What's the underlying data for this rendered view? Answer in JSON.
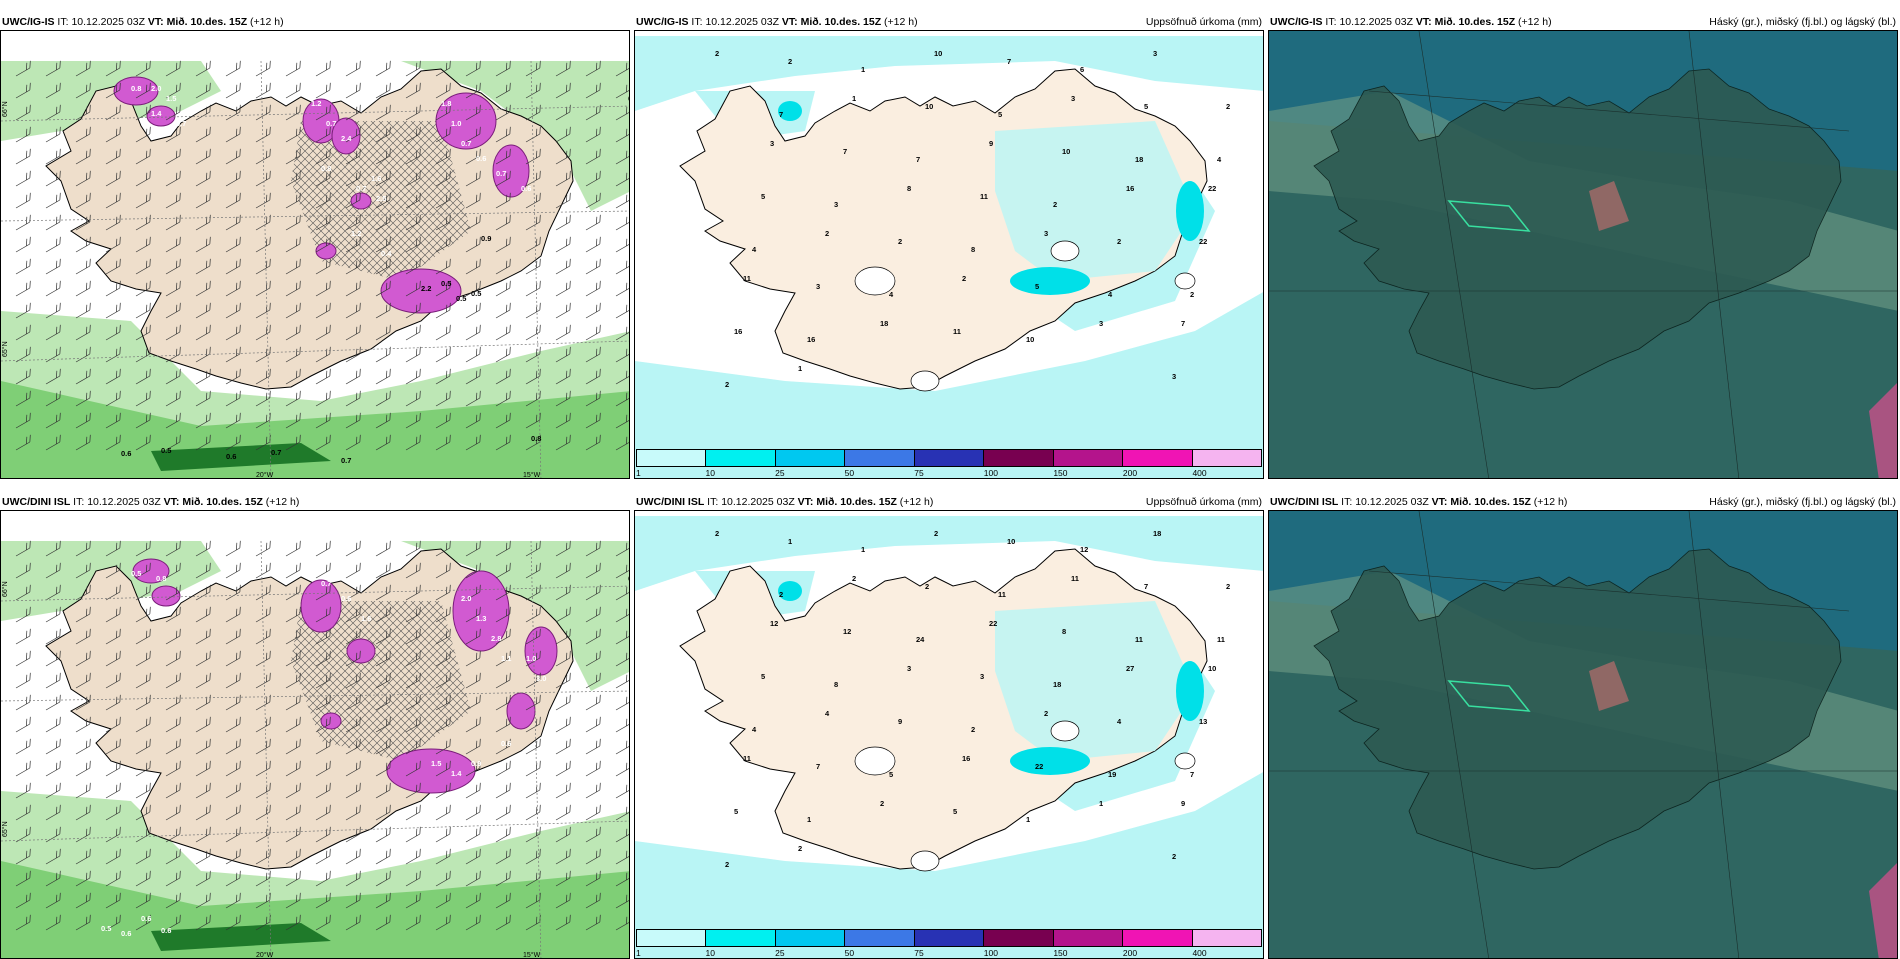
{
  "row1": {
    "p1": {
      "model": "UWC/IG-IS",
      "it_prefix": "IT:",
      "it": "10.12.2025 03Z",
      "vt_prefix": "VT:",
      "vt": "Mið. 10.des. 15Z",
      "lead": "(+12 h)"
    },
    "p2": {
      "model": "UWC/IG-IS",
      "it_prefix": "IT:",
      "it": "10.12.2025 03Z",
      "vt_prefix": "VT:",
      "vt": "Mið. 10.des. 15Z",
      "lead": "(+12 h)",
      "right": "Uppsöfnuð úrkoma (mm)"
    },
    "p3": {
      "model": "UWC/IG-IS",
      "it_prefix": "IT:",
      "it": "10.12.2025 03Z",
      "vt_prefix": "VT:",
      "vt": "Mið. 10.des. 15Z",
      "lead": "(+12 h)",
      "right": "Háský (gr.), miðský (fj.bl.) og lágský (bl.)"
    }
  },
  "row2": {
    "p1": {
      "model": "UWC/DINI ISL",
      "it_prefix": "IT:",
      "it": "10.12.2025 03Z",
      "vt_prefix": "VT:",
      "vt": "Mið. 10.des. 15Z",
      "lead": "(+12 h)"
    },
    "p2": {
      "model": "UWC/DINI ISL",
      "it_prefix": "IT:",
      "it": "10.12.2025 03Z",
      "vt_prefix": "VT:",
      "vt": "Mið. 10.des. 15Z",
      "lead": "(+12 h)",
      "right": "Uppsöfnuð úrkoma (mm)"
    },
    "p3": {
      "model": "UWC/DINI ISL",
      "it_prefix": "IT:",
      "it": "10.12.2025 03Z",
      "vt_prefix": "VT:",
      "vt": "Mið. 10.des. 15Z",
      "lead": "(+12 h)",
      "right": "Háský (gr.), miðský (fj.bl.) og lágský (bl.)"
    }
  },
  "map_labels": {
    "lat66": "66°N",
    "lat65": "65°N",
    "lat64": "64°N",
    "lon25": "25°W",
    "lon20": "20°W",
    "lon15": "15°W"
  },
  "colorbar": {
    "ticks": [
      "1",
      "10",
      "25",
      "50",
      "75",
      "100",
      "150",
      "200",
      "400"
    ],
    "colors": [
      "#c8fafa",
      "#00f0f0",
      "#00c8f0",
      "#3c78e6",
      "#2832b4",
      "#780050",
      "#b4148c",
      "#f014b4",
      "#f5b4f0"
    ]
  },
  "precip_top": [
    "2",
    "2",
    "1",
    "10",
    "7",
    "6",
    "3",
    "2",
    "7",
    "1",
    "10",
    "5",
    "3",
    "5",
    "4",
    "3",
    "7",
    "7",
    "9",
    "10",
    "18",
    "22",
    "5",
    "3",
    "8",
    "11",
    "2",
    "16",
    "22",
    "4",
    "2",
    "2",
    "8",
    "3",
    "2",
    "2",
    "11",
    "3",
    "4",
    "2",
    "5",
    "4",
    "7",
    "16",
    "16",
    "18",
    "11",
    "10",
    "3",
    "3",
    "2",
    "1"
  ],
  "precip_bottom": [
    "2",
    "1",
    "1",
    "2",
    "10",
    "12",
    "18",
    "2",
    "2",
    "2",
    "2",
    "11",
    "11",
    "7",
    "11",
    "12",
    "12",
    "24",
    "22",
    "8",
    "11",
    "10",
    "5",
    "8",
    "3",
    "3",
    "18",
    "27",
    "13",
    "4",
    "4",
    "9",
    "2",
    "2",
    "4",
    "7",
    "11",
    "7",
    "5",
    "16",
    "22",
    "19",
    "9",
    "5",
    "1",
    "2",
    "5",
    "1",
    "1",
    "2",
    "2",
    "2"
  ],
  "snow_top": [
    "0.8",
    "2.0",
    "1.5",
    "1.4",
    "0.7",
    "1.2",
    "0.7",
    "2.4",
    "0.8",
    "0.7",
    "1.6",
    "2.5",
    "1.2",
    "0.4",
    "1.8",
    "1.0",
    "0.7",
    "0.6",
    "0.7",
    "0.6",
    "0.9",
    "2.2",
    "0.5",
    "0.5",
    "0.5",
    "0.6",
    "0.5",
    "0.6",
    "0.7",
    "0.7",
    "0.8"
  ],
  "snow_bottom": [
    "0.5",
    "0.8",
    "0.7",
    "0.6",
    "1.6",
    "2.0",
    "1.3",
    "2.8",
    "1.1",
    "1.0",
    "3.0",
    "1.5",
    "1.4",
    "0.9",
    "0.6",
    "0.6",
    "0.5",
    "0.6",
    "0.6"
  ]
}
